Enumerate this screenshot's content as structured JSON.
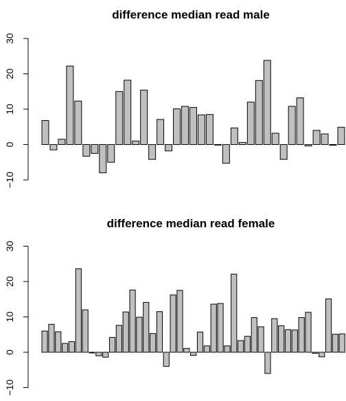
{
  "colors": {
    "bar_fill": "#c0c0c0",
    "bar_stroke": "#000000",
    "axis": "#000000"
  },
  "chart_data": [
    {
      "type": "bar",
      "title": "difference median read male",
      "xlabel": "",
      "ylabel": "",
      "ylim": [
        -10,
        30
      ],
      "yticks": [
        -10,
        0,
        10,
        20,
        30
      ],
      "ytick_labels": [
        "−10",
        "0",
        "10",
        "20",
        "30"
      ],
      "grid": false,
      "values": [
        6.8,
        -1.5,
        1.5,
        22.2,
        12.3,
        -3.3,
        -2.5,
        -8.0,
        -5.0,
        15.0,
        18.2,
        1.0,
        15.4,
        -4.2,
        7.1,
        -1.8,
        10.1,
        10.8,
        10.5,
        8.4,
        8.5,
        -0.1,
        -5.3,
        4.7,
        0.6,
        12.0,
        18.1,
        23.8,
        3.2,
        -4.2,
        10.8,
        13.2,
        -0.4,
        4.0,
        3.0,
        -0.2,
        4.9
      ]
    },
    {
      "type": "bar",
      "title": "difference median read female",
      "xlabel": "",
      "ylabel": "",
      "ylim": [
        -10,
        30
      ],
      "yticks": [
        -10,
        0,
        10,
        20,
        30
      ],
      "ytick_labels": [
        "−10",
        "0",
        "10",
        "20",
        "30"
      ],
      "grid": false,
      "values": [
        6.0,
        7.9,
        5.8,
        2.5,
        3.0,
        23.6,
        12.0,
        -0.2,
        -1.0,
        -1.4,
        4.2,
        7.6,
        11.4,
        17.6,
        9.9,
        14.1,
        5.3,
        11.5,
        -4.0,
        16.2,
        17.5,
        1.1,
        -0.9,
        5.7,
        1.8,
        13.6,
        13.8,
        1.8,
        22.1,
        3.3,
        4.5,
        9.8,
        7.2,
        -6.0,
        9.5,
        7.5,
        6.4,
        6.3,
        9.8,
        11.3,
        -0.3,
        -1.3,
        15.1,
        5.1,
        5.2
      ]
    }
  ]
}
